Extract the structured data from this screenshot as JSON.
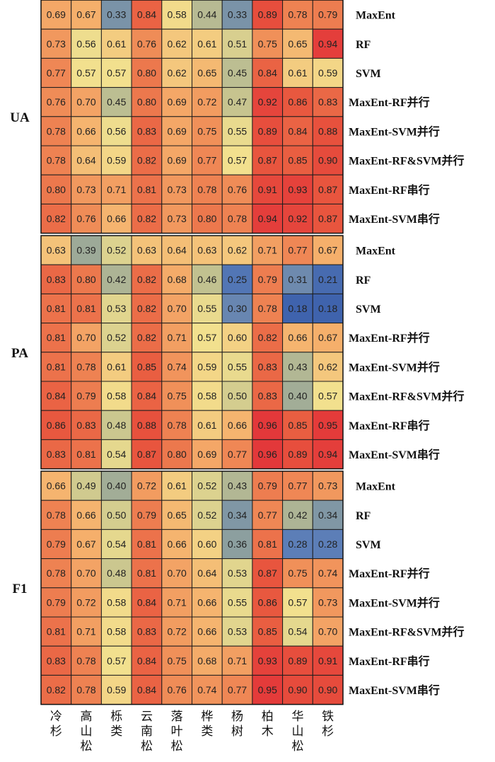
{
  "chart_data": {
    "type": "heatmap",
    "species": [
      "冷杉",
      "高山松",
      "栎类",
      "云南松",
      "落叶松",
      "桦类",
      "杨树",
      "柏木",
      "华山松",
      "铁杉"
    ],
    "methods": [
      "MaxEnt",
      "RF",
      "SVM",
      "MaxEnt-RF并行",
      "MaxEnt-SVM并行",
      "MaxEnt-RF&SVM并行",
      "MaxEnt-RF串行",
      "MaxEnt-SVM串行"
    ],
    "color_scale": {
      "min": 0.18,
      "max": 0.96,
      "stops": [
        "#3f63ad",
        "#5a7db8",
        "#95a59a",
        "#c8c58f",
        "#f2e08e",
        "#f5b06c",
        "#ef8a56",
        "#e8573e",
        "#e3383a"
      ]
    },
    "panels": [
      {
        "metric": "UA",
        "values": [
          [
            0.69,
            0.67,
            0.33,
            0.84,
            0.58,
            0.44,
            0.33,
            0.89,
            0.78,
            0.79
          ],
          [
            0.73,
            0.56,
            0.61,
            0.76,
            0.62,
            0.61,
            0.51,
            0.75,
            0.65,
            0.94
          ],
          [
            0.77,
            0.57,
            0.57,
            0.8,
            0.62,
            0.65,
            0.45,
            0.84,
            0.61,
            0.59
          ],
          [
            0.76,
            0.7,
            0.45,
            0.8,
            0.69,
            0.72,
            0.47,
            0.92,
            0.86,
            0.83
          ],
          [
            0.78,
            0.66,
            0.56,
            0.83,
            0.69,
            0.75,
            0.55,
            0.89,
            0.84,
            0.88
          ],
          [
            0.78,
            0.64,
            0.59,
            0.82,
            0.69,
            0.77,
            0.57,
            0.87,
            0.85,
            0.9
          ],
          [
            0.8,
            0.73,
            0.71,
            0.81,
            0.73,
            0.78,
            0.76,
            0.91,
            0.93,
            0.87
          ],
          [
            0.82,
            0.76,
            0.66,
            0.82,
            0.73,
            0.8,
            0.78,
            0.94,
            0.92,
            0.87
          ]
        ]
      },
      {
        "metric": "PA",
        "values": [
          [
            0.63,
            0.39,
            0.52,
            0.63,
            0.64,
            0.63,
            0.62,
            0.71,
            0.77,
            0.67
          ],
          [
            0.83,
            0.8,
            0.42,
            0.82,
            0.68,
            0.46,
            0.25,
            0.79,
            0.31,
            0.21
          ],
          [
            0.81,
            0.81,
            0.53,
            0.82,
            0.7,
            0.55,
            0.3,
            0.78,
            0.18,
            0.18
          ],
          [
            0.81,
            0.7,
            0.52,
            0.82,
            0.71,
            0.57,
            0.6,
            0.82,
            0.66,
            0.67
          ],
          [
            0.81,
            0.78,
            0.61,
            0.85,
            0.74,
            0.59,
            0.55,
            0.83,
            0.43,
            0.62
          ],
          [
            0.84,
            0.79,
            0.58,
            0.84,
            0.75,
            0.58,
            0.5,
            0.83,
            0.4,
            0.57
          ],
          [
            0.86,
            0.83,
            0.48,
            0.88,
            0.78,
            0.61,
            0.66,
            0.96,
            0.85,
            0.95
          ],
          [
            0.83,
            0.81,
            0.54,
            0.87,
            0.8,
            0.69,
            0.77,
            0.96,
            0.89,
            0.94
          ]
        ]
      },
      {
        "metric": "F1",
        "values": [
          [
            0.66,
            0.49,
            0.4,
            0.72,
            0.61,
            0.52,
            0.43,
            0.79,
            0.77,
            0.73
          ],
          [
            0.78,
            0.66,
            0.5,
            0.79,
            0.65,
            0.52,
            0.34,
            0.77,
            0.42,
            0.34
          ],
          [
            0.79,
            0.67,
            0.54,
            0.81,
            0.66,
            0.6,
            0.36,
            0.81,
            0.28,
            0.28
          ],
          [
            0.78,
            0.7,
            0.48,
            0.81,
            0.7,
            0.64,
            0.53,
            0.87,
            0.75,
            0.74
          ],
          [
            0.79,
            0.72,
            0.58,
            0.84,
            0.71,
            0.66,
            0.55,
            0.86,
            0.57,
            0.73
          ],
          [
            0.81,
            0.71,
            0.58,
            0.83,
            0.72,
            0.66,
            0.53,
            0.85,
            0.54,
            0.7
          ],
          [
            0.83,
            0.78,
            0.57,
            0.84,
            0.75,
            0.68,
            0.71,
            0.93,
            0.89,
            0.91
          ],
          [
            0.82,
            0.78,
            0.59,
            0.84,
            0.76,
            0.74,
            0.77,
            0.95,
            0.9,
            0.9
          ]
        ]
      }
    ]
  }
}
